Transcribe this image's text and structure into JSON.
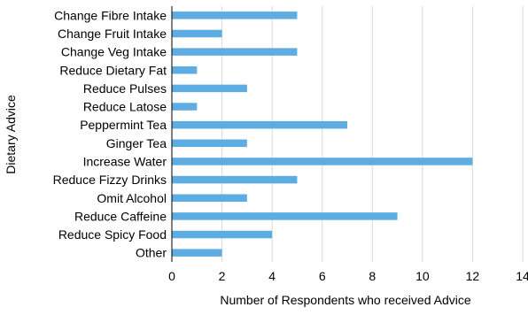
{
  "chart_data": {
    "type": "bar",
    "orientation": "horizontal",
    "title": "",
    "xlabel": "Number of Respondents who received Advice",
    "ylabel": "Dietary Advice",
    "categories": [
      "Change Fibre Intake",
      "Change Fruit Intake",
      "Change Veg Intake",
      "Reduce Dietary Fat",
      "Reduce Pulses",
      "Reduce Latose",
      "Peppermint Tea",
      "Ginger Tea",
      "Increase Water",
      "Reduce Fizzy Drinks",
      "Omit Alcohol",
      "Reduce Caffeine",
      "Reduce Spicy Food",
      "Other"
    ],
    "values": [
      5,
      2,
      5,
      1,
      3,
      1,
      7,
      3,
      12,
      5,
      3,
      9,
      4,
      2
    ],
    "xlim": [
      0,
      14
    ],
    "xticks": [
      "0",
      "2",
      "4",
      "6",
      "8",
      "10",
      "12",
      "14"
    ],
    "grid": "vertical",
    "legend": "none",
    "colors": {
      "bar": "#5dade2",
      "grid": "#d9d9d9",
      "axis": "#000000",
      "text": "#000000"
    }
  }
}
